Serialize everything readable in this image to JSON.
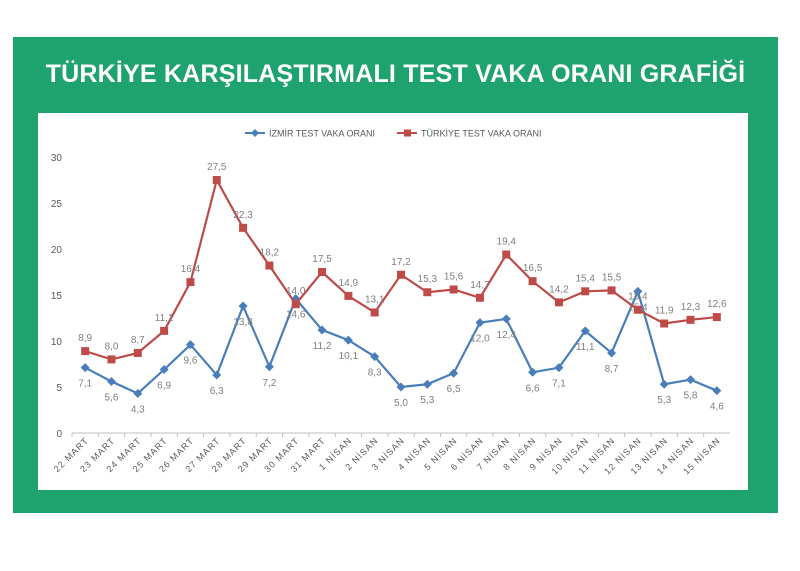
{
  "chart_data": {
    "type": "line",
    "title": "TÜRKİYE KARŞILAŞTIRMALI TEST VAKA ORANI GRAFİĞİ",
    "xlabel": "",
    "ylabel": "",
    "ylim": [
      0,
      30
    ],
    "yticks": [
      "0",
      "5",
      "10",
      "15",
      "20",
      "25",
      "30"
    ],
    "grid": false,
    "legend": "top",
    "categories": [
      "22 MART",
      "23 MART",
      "24 MART",
      "25 MART",
      "26 MART",
      "27 MART",
      "28 MART",
      "29 MART",
      "30 MART",
      "31 MART",
      "1 NİSAN",
      "2 NİSAN",
      "3 NİSAN",
      "4 NİSAN",
      "5 NİSAN",
      "6 NİSAN",
      "7 NİSAN",
      "8 NİSAN",
      "9 NİSAN",
      "10 NİSAN",
      "11 NİSAN",
      "12 NİSAN",
      "13 NİSAN",
      "14 NİSAN",
      "15 NİSAN"
    ],
    "series": [
      {
        "name": "İZMİR TEST VAKA ORANI",
        "color": "#4a7ebb",
        "marker": "diamond",
        "values": [
          7.1,
          5.6,
          4.3,
          6.9,
          9.6,
          6.3,
          13.8,
          7.2,
          14.6,
          11.2,
          10.1,
          8.3,
          5.0,
          5.3,
          6.5,
          12.0,
          12.4,
          6.6,
          7.1,
          11.1,
          8.7,
          15.4,
          5.3,
          5.8,
          4.6
        ]
      },
      {
        "name": "TÜRKİYE TEST VAKA ORANI",
        "color": "#be4b48",
        "marker": "square",
        "values": [
          8.9,
          8.0,
          8.7,
          11.1,
          16.4,
          27.5,
          22.3,
          18.2,
          14.0,
          17.5,
          14.9,
          13.1,
          17.2,
          15.3,
          15.6,
          14.7,
          19.4,
          16.5,
          14.2,
          15.4,
          15.5,
          13.4,
          11.9,
          12.3,
          12.6
        ]
      }
    ]
  }
}
